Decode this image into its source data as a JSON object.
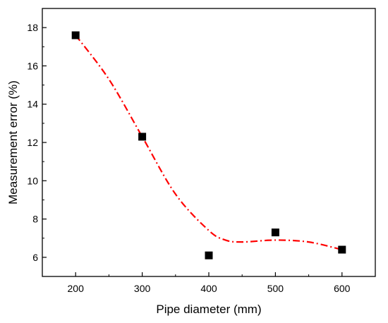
{
  "chart_data": {
    "type": "scatter",
    "title": "",
    "xlabel": "Pipe diameter (mm)",
    "ylabel": "Measurement error (%)",
    "xlim": [
      150,
      650
    ],
    "ylim": [
      5,
      19
    ],
    "x_ticks": [
      200,
      300,
      400,
      500,
      600
    ],
    "y_ticks": [
      6,
      8,
      10,
      12,
      14,
      16,
      18
    ],
    "grid": false,
    "legend": "none",
    "series": [
      {
        "type": "scatter",
        "marker": "square",
        "color": "#000000",
        "x": [
          200,
          300,
          400,
          500,
          600
        ],
        "y": [
          17.6,
          12.3,
          6.1,
          7.3,
          6.4
        ]
      },
      {
        "type": "line",
        "style": "dash-dot",
        "color": "#ff0000",
        "x": [
          200,
          250,
          300,
          350,
          400,
          425,
          450,
          500,
          550,
          600
        ],
        "y": [
          17.6,
          15.3,
          12.3,
          9.3,
          7.4,
          6.9,
          6.8,
          6.9,
          6.8,
          6.4
        ]
      }
    ]
  }
}
